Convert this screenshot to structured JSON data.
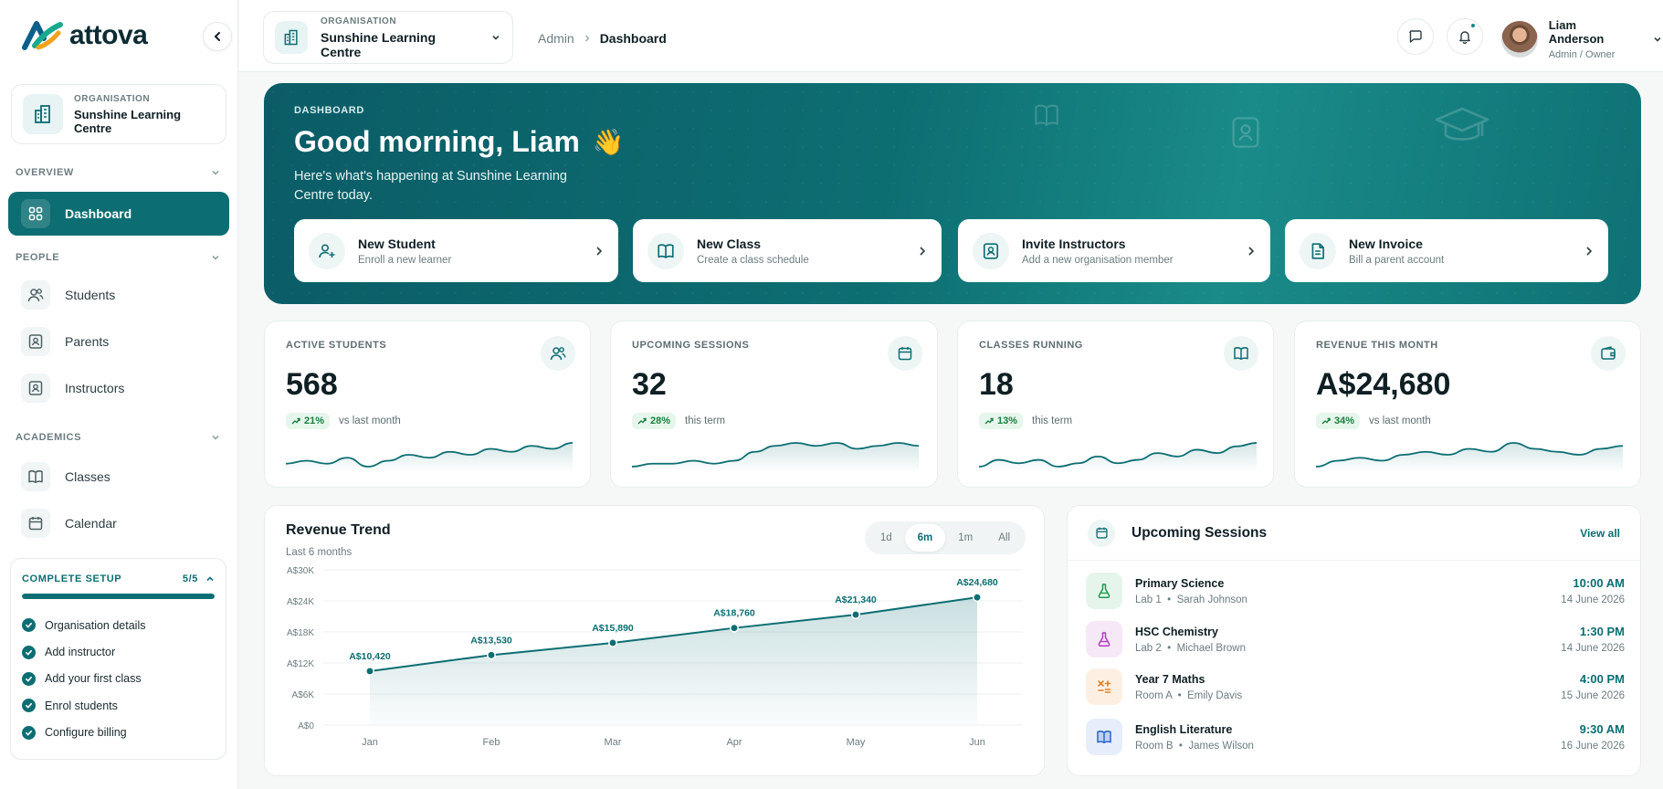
{
  "brand": {
    "name": "attova"
  },
  "sidebar": {
    "org": {
      "label": "ORGANISATION",
      "name": "Sunshine Learning Centre"
    },
    "sections": {
      "overview": "OVERVIEW",
      "people": "PEOPLE",
      "academics": "ACADEMICS"
    },
    "items": {
      "dashboard": "Dashboard",
      "students": "Students",
      "parents": "Parents",
      "instructors": "Instructors",
      "classes": "Classes",
      "calendar": "Calendar"
    },
    "setup": {
      "title": "COMPLETE SETUP",
      "count": "5/5",
      "progress": 1.0,
      "steps": [
        "Organisation details",
        "Add instructor",
        "Add your first class",
        "Enrol students",
        "Configure billing"
      ]
    }
  },
  "header": {
    "org": {
      "label": "ORGANISATION",
      "name": "Sunshine Learning Centre"
    },
    "breadcrumb": {
      "root": "Admin",
      "current": "Dashboard"
    },
    "user": {
      "name": "Liam Anderson",
      "role": "Admin / Owner"
    }
  },
  "hero": {
    "tag": "DASHBOARD",
    "title": "Good morning, Liam",
    "emoji": "👋",
    "subtitle": "Here's what's happening at Sunshine Learning Centre today.",
    "actions": [
      {
        "title": "New Student",
        "sub": "Enroll a new learner",
        "icon": "user-plus-icon"
      },
      {
        "title": "New Class",
        "sub": "Create a class schedule",
        "icon": "book-icon"
      },
      {
        "title": "Invite Instructors",
        "sub": "Add a new organisation member",
        "icon": "id-badge-icon"
      },
      {
        "title": "New Invoice",
        "sub": "Bill a parent account",
        "icon": "invoice-icon"
      }
    ]
  },
  "kpis": [
    {
      "label": "ACTIVE STUDENTS",
      "value": "568",
      "delta": "21%",
      "note": "vs last month",
      "icon": "users-icon",
      "trend": [
        5,
        6,
        5,
        7,
        4,
        6,
        8,
        7,
        9,
        8,
        10,
        9,
        11,
        10,
        12
      ]
    },
    {
      "label": "UPCOMING SESSIONS",
      "value": "32",
      "delta": "28%",
      "note": "this term",
      "icon": "calendar-icon",
      "trend": [
        4,
        5,
        5,
        6,
        5,
        6,
        9,
        11,
        12,
        11,
        12,
        10,
        11,
        12,
        11
      ]
    },
    {
      "label": "CLASSES RUNNING",
      "value": "18",
      "delta": "13%",
      "note": "this term",
      "icon": "book-icon",
      "trend": [
        4,
        6,
        5,
        6,
        4,
        5,
        7,
        5,
        6,
        8,
        7,
        9,
        8,
        10,
        11
      ]
    },
    {
      "label": "REVENUE THIS MONTH",
      "value": "A$24,680",
      "delta": "34%",
      "note": "vs last month",
      "icon": "wallet-icon",
      "trend": [
        4,
        6,
        7,
        6,
        8,
        9,
        8,
        10,
        9,
        12,
        10,
        9,
        8,
        10,
        11
      ]
    }
  ],
  "revenue": {
    "title": "Revenue Trend",
    "subtitle": "Last 6 months",
    "ranges": [
      "1d",
      "6m",
      "1m",
      "All"
    ],
    "active_range": "6m"
  },
  "chart_data": {
    "type": "area",
    "title": "Revenue Trend",
    "subtitle": "Last 6 months",
    "categories": [
      "Jan",
      "Feb",
      "Mar",
      "Apr",
      "May",
      "Jun"
    ],
    "values": [
      10420,
      13530,
      15890,
      18760,
      21340,
      24680
    ],
    "value_labels": [
      "A$10,420",
      "A$13,530",
      "A$15,890",
      "A$18,760",
      "A$21,340",
      "A$24,680"
    ],
    "yticks": [
      "A$0",
      "A$6K",
      "A$12K",
      "A$18K",
      "A$24K",
      "A$30K"
    ],
    "ylim": [
      0,
      30000
    ],
    "grid": true,
    "color": "#0c6e72"
  },
  "sessions": {
    "title": "Upcoming Sessions",
    "view_all": "View all",
    "items": [
      {
        "name": "Primary Science",
        "room": "Lab 1",
        "teacher": "Sarah Johnson",
        "time": "10:00 AM",
        "date": "14 June 2026",
        "icon": "flask-icon",
        "bg": "#e6f5ec",
        "fg": "#1e9a4e"
      },
      {
        "name": "HSC Chemistry",
        "room": "Lab 2",
        "teacher": "Michael Brown",
        "time": "1:30 PM",
        "date": "14 June 2026",
        "icon": "flask-icon",
        "bg": "#f6e8f7",
        "fg": "#b03cc0"
      },
      {
        "name": "Year 7 Maths",
        "room": "Room A",
        "teacher": "Emily Davis",
        "time": "4:00 PM",
        "date": "15 June 2026",
        "icon": "math-icon",
        "bg": "#fdf0e3",
        "fg": "#e0802a"
      },
      {
        "name": "English Literature",
        "room": "Room B",
        "teacher": "James Wilson",
        "time": "9:30 AM",
        "date": "16 June 2026",
        "icon": "book-open-icon",
        "bg": "#e6eefb",
        "fg": "#2e64c8"
      }
    ]
  }
}
